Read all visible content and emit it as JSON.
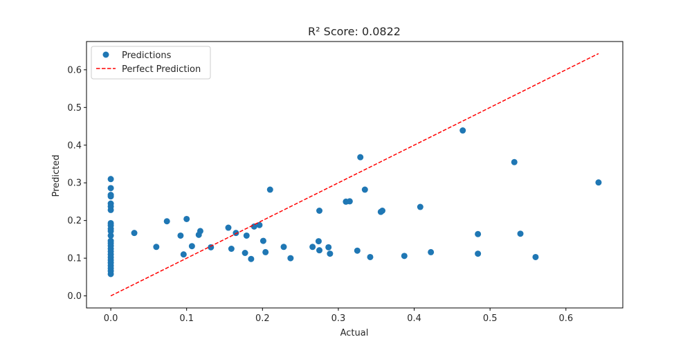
{
  "chart_data": {
    "type": "scatter",
    "title": "R² Score: 0.0822",
    "xlabel": "Actual",
    "ylabel": "Predicted",
    "xlim": [
      -0.032,
      0.675
    ],
    "ylim": [
      -0.032,
      0.675
    ],
    "xticks": [
      0.0,
      0.1,
      0.2,
      0.3,
      0.4,
      0.5,
      0.6
    ],
    "yticks": [
      0.0,
      0.1,
      0.2,
      0.3,
      0.4,
      0.5,
      0.6
    ],
    "xtick_labels": [
      "0.0",
      "0.1",
      "0.2",
      "0.3",
      "0.4",
      "0.5",
      "0.6"
    ],
    "ytick_labels": [
      "0.0",
      "0.1",
      "0.2",
      "0.3",
      "0.4",
      "0.5",
      "0.6"
    ],
    "grid": false,
    "legend": "top-left",
    "series": [
      {
        "name": "Predictions",
        "kind": "scatter",
        "color": "#1f77b4",
        "points": [
          [
            0.0,
            0.31
          ],
          [
            0.0,
            0.286
          ],
          [
            0.0,
            0.268
          ],
          [
            0.0,
            0.264
          ],
          [
            0.0,
            0.245
          ],
          [
            0.0,
            0.237
          ],
          [
            0.0,
            0.228
          ],
          [
            0.0,
            0.193
          ],
          [
            0.0,
            0.187
          ],
          [
            0.0,
            0.178
          ],
          [
            0.0,
            0.172
          ],
          [
            0.0,
            0.16
          ],
          [
            0.0,
            0.146
          ],
          [
            0.0,
            0.14
          ],
          [
            0.0,
            0.133
          ],
          [
            0.0,
            0.125
          ],
          [
            0.0,
            0.118
          ],
          [
            0.0,
            0.11
          ],
          [
            0.0,
            0.102
          ],
          [
            0.0,
            0.095
          ],
          [
            0.0,
            0.088
          ],
          [
            0.0,
            0.08
          ],
          [
            0.0,
            0.073
          ],
          [
            0.0,
            0.066
          ],
          [
            0.0,
            0.058
          ],
          [
            0.031,
            0.167
          ],
          [
            0.06,
            0.13
          ],
          [
            0.074,
            0.198
          ],
          [
            0.092,
            0.16
          ],
          [
            0.096,
            0.11
          ],
          [
            0.1,
            0.204
          ],
          [
            0.107,
            0.132
          ],
          [
            0.116,
            0.162
          ],
          [
            0.118,
            0.172
          ],
          [
            0.132,
            0.129
          ],
          [
            0.155,
            0.181
          ],
          [
            0.159,
            0.125
          ],
          [
            0.165,
            0.167
          ],
          [
            0.177,
            0.114
          ],
          [
            0.179,
            0.16
          ],
          [
            0.185,
            0.098
          ],
          [
            0.189,
            0.184
          ],
          [
            0.196,
            0.188
          ],
          [
            0.201,
            0.146
          ],
          [
            0.204,
            0.116
          ],
          [
            0.21,
            0.282
          ],
          [
            0.228,
            0.13
          ],
          [
            0.237,
            0.1
          ],
          [
            0.266,
            0.13
          ],
          [
            0.274,
            0.145
          ],
          [
            0.275,
            0.226
          ],
          [
            0.275,
            0.121
          ],
          [
            0.287,
            0.129
          ],
          [
            0.289,
            0.112
          ],
          [
            0.31,
            0.25
          ],
          [
            0.315,
            0.251
          ],
          [
            0.325,
            0.12
          ],
          [
            0.329,
            0.368
          ],
          [
            0.335,
            0.282
          ],
          [
            0.342,
            0.103
          ],
          [
            0.356,
            0.223
          ],
          [
            0.358,
            0.226
          ],
          [
            0.387,
            0.106
          ],
          [
            0.408,
            0.236
          ],
          [
            0.422,
            0.116
          ],
          [
            0.464,
            0.439
          ],
          [
            0.484,
            0.164
          ],
          [
            0.484,
            0.112
          ],
          [
            0.532,
            0.355
          ],
          [
            0.54,
            0.165
          ],
          [
            0.56,
            0.103
          ],
          [
            0.643,
            0.301
          ]
        ]
      },
      {
        "name": "Perfect Prediction",
        "kind": "line",
        "style": "dashed",
        "color": "#ff0000",
        "points": [
          [
            0.0,
            0.0
          ],
          [
            0.643,
            0.643
          ]
        ]
      }
    ]
  }
}
